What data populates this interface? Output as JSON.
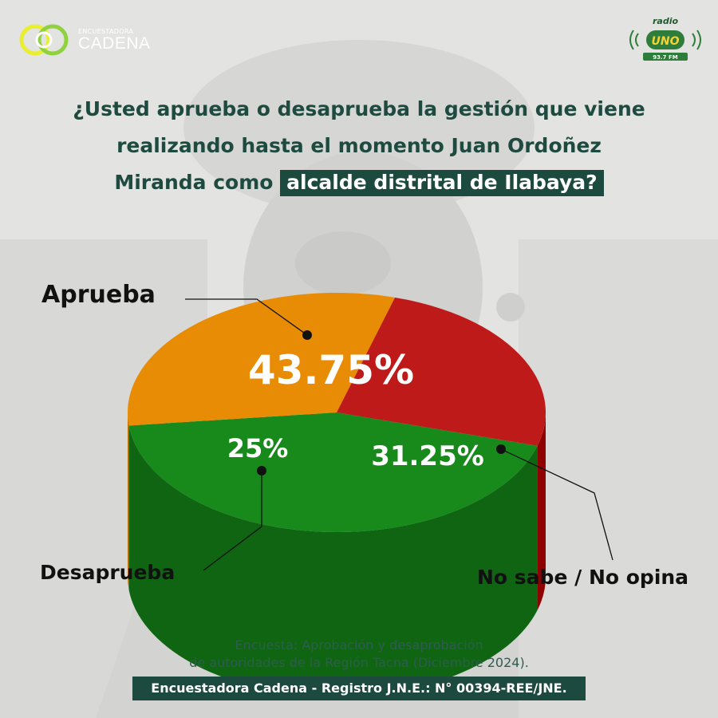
{
  "brand": {
    "pollster_small": "ENCUESTADORA",
    "pollster_name": "CADENA",
    "radio_top": "radio",
    "radio_name": "UNO",
    "radio_freq": "93.7 FM"
  },
  "question": {
    "line1": "¿Usted aprueba o desaprueba la gestión que viene",
    "line2": "realizando hasta el momento Juan Ordoñez",
    "line3_plain": "Miranda como",
    "line3_highlight": "alcalde distrital de Ilabaya?"
  },
  "colors": {
    "aprueba": "#178a1b",
    "aprueba_side": "#0f6512",
    "desaprueba": "#bf1a1a",
    "desaprueba_side": "#8f0000",
    "no_opina": "#e98c05",
    "no_opina_side": "#c26f00",
    "dark_green": "#1d4a3f"
  },
  "chart_data": {
    "type": "pie",
    "categories": [
      "Aprueba",
      "No sabe / No opina",
      "Desaprueba"
    ],
    "values": [
      43.75,
      31.25,
      25
    ],
    "value_labels": [
      "43.75%",
      "31.25%",
      "25%"
    ],
    "title": "¿Usted aprueba o desaprueba la gestión que viene realizando hasta el momento Juan Ordoñez Miranda como alcalde distrital de Ilabaya?"
  },
  "footer": {
    "line1": "Encuesta: Aprobación y desaprobación",
    "line2": "de autoridades de la Región Tacna (Diciembre 2024).",
    "registry": "Encuestadora Cadena - Registro J.N.E.: N° 00394-REE/JNE."
  }
}
